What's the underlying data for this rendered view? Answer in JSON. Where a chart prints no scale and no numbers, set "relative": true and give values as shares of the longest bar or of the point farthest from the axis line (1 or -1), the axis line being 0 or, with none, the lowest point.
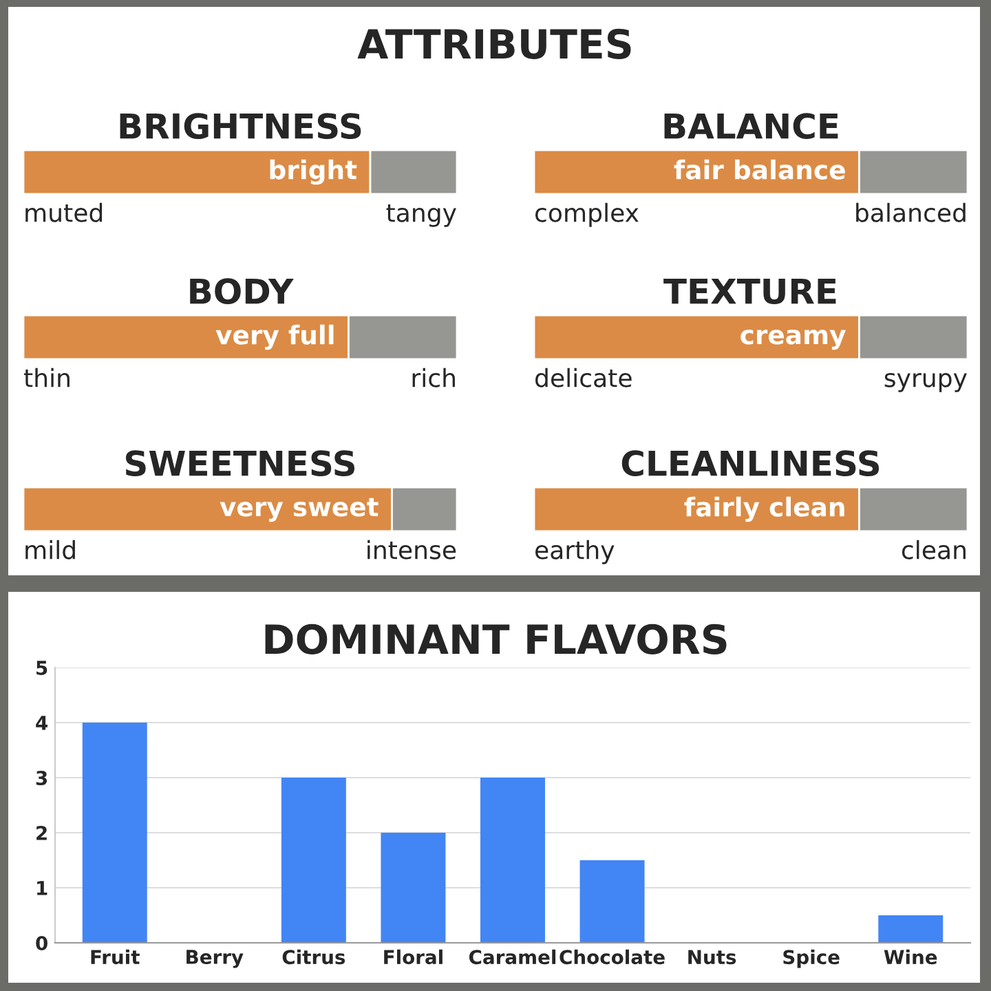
{
  "chart_data": [
    {
      "type": "other",
      "title": "ATTRIBUTES"
    },
    {
      "type": "bar",
      "orientation": "horizontal",
      "stacked": true,
      "relative": true,
      "title": "BRIGHTNESS",
      "categories": [
        null
      ],
      "series": [
        {
          "color": "#db8b45",
          "values": [
            0.8
          ]
        },
        {
          "color": "#969793",
          "values": [
            0.2
          ]
        }
      ],
      "annotations": [
        {
          "text": "bright",
          "x": 0.8
        },
        "muted",
        "tangy"
      ]
    },
    {
      "type": "bar",
      "orientation": "horizontal",
      "stacked": true,
      "relative": true,
      "title": "BALANCE",
      "categories": [
        null
      ],
      "series": [
        {
          "color": "#db8b45",
          "values": [
            0.75
          ]
        },
        {
          "color": "#969793",
          "values": [
            0.25
          ]
        }
      ],
      "annotations": [
        {
          "text": "fair balance",
          "x": 0.75
        },
        "complex",
        "balanced"
      ]
    },
    {
      "type": "bar",
      "orientation": "horizontal",
      "stacked": true,
      "relative": true,
      "title": "BODY",
      "categories": [
        null
      ],
      "series": [
        {
          "color": "#db8b45",
          "values": [
            0.75
          ]
        },
        {
          "color": "#969793",
          "values": [
            0.25
          ]
        }
      ],
      "annotations": [
        {
          "text": "very full",
          "x": 0.75
        },
        "thin",
        "rich"
      ]
    },
    {
      "type": "bar",
      "orientation": "horizontal",
      "stacked": true,
      "relative": true,
      "title": "TEXTURE",
      "categories": [
        null
      ],
      "series": [
        {
          "color": "#db8b45",
          "values": [
            0.75
          ]
        },
        {
          "color": "#969793",
          "values": [
            0.25
          ]
        }
      ],
      "annotations": [
        {
          "text": "creamy",
          "x": 0.75
        },
        "delicate",
        "syrupy"
      ]
    },
    {
      "type": "bar",
      "orientation": "horizontal",
      "stacked": true,
      "relative": true,
      "title": "SWEETNESS",
      "categories": [
        null
      ],
      "series": [
        {
          "color": "#db8b45",
          "values": [
            0.85
          ]
        },
        {
          "color": "#969793",
          "values": [
            0.15
          ]
        }
      ],
      "annotations": [
        {
          "text": "very sweet",
          "x": 0.85
        },
        "mild",
        "intense"
      ]
    },
    {
      "type": "bar",
      "orientation": "horizontal",
      "stacked": true,
      "relative": true,
      "title": "CLEANLINESS",
      "categories": [
        null
      ],
      "series": [
        {
          "color": "#db8b45",
          "values": [
            0.75
          ]
        },
        {
          "color": "#969793",
          "values": [
            0.25
          ]
        }
      ],
      "annotations": [
        {
          "text": "fairly clean",
          "x": 0.75
        },
        "earthy",
        "clean"
      ]
    },
    {
      "type": "bar",
      "title": "DOMINANT FLAVORS",
      "categories": [
        "Fruit",
        "Berry",
        "Citrus",
        "Floral",
        "Caramel",
        "Chocolate",
        "Nuts",
        "Spice",
        "Wine"
      ],
      "values": [
        4,
        0,
        3,
        2,
        3,
        1.5,
        0,
        0,
        0.5
      ],
      "color": "#4285f4",
      "ylim": [
        0,
        5
      ],
      "yticks": [
        0,
        1,
        2,
        3,
        4,
        5
      ],
      "grid": "y"
    }
  ]
}
